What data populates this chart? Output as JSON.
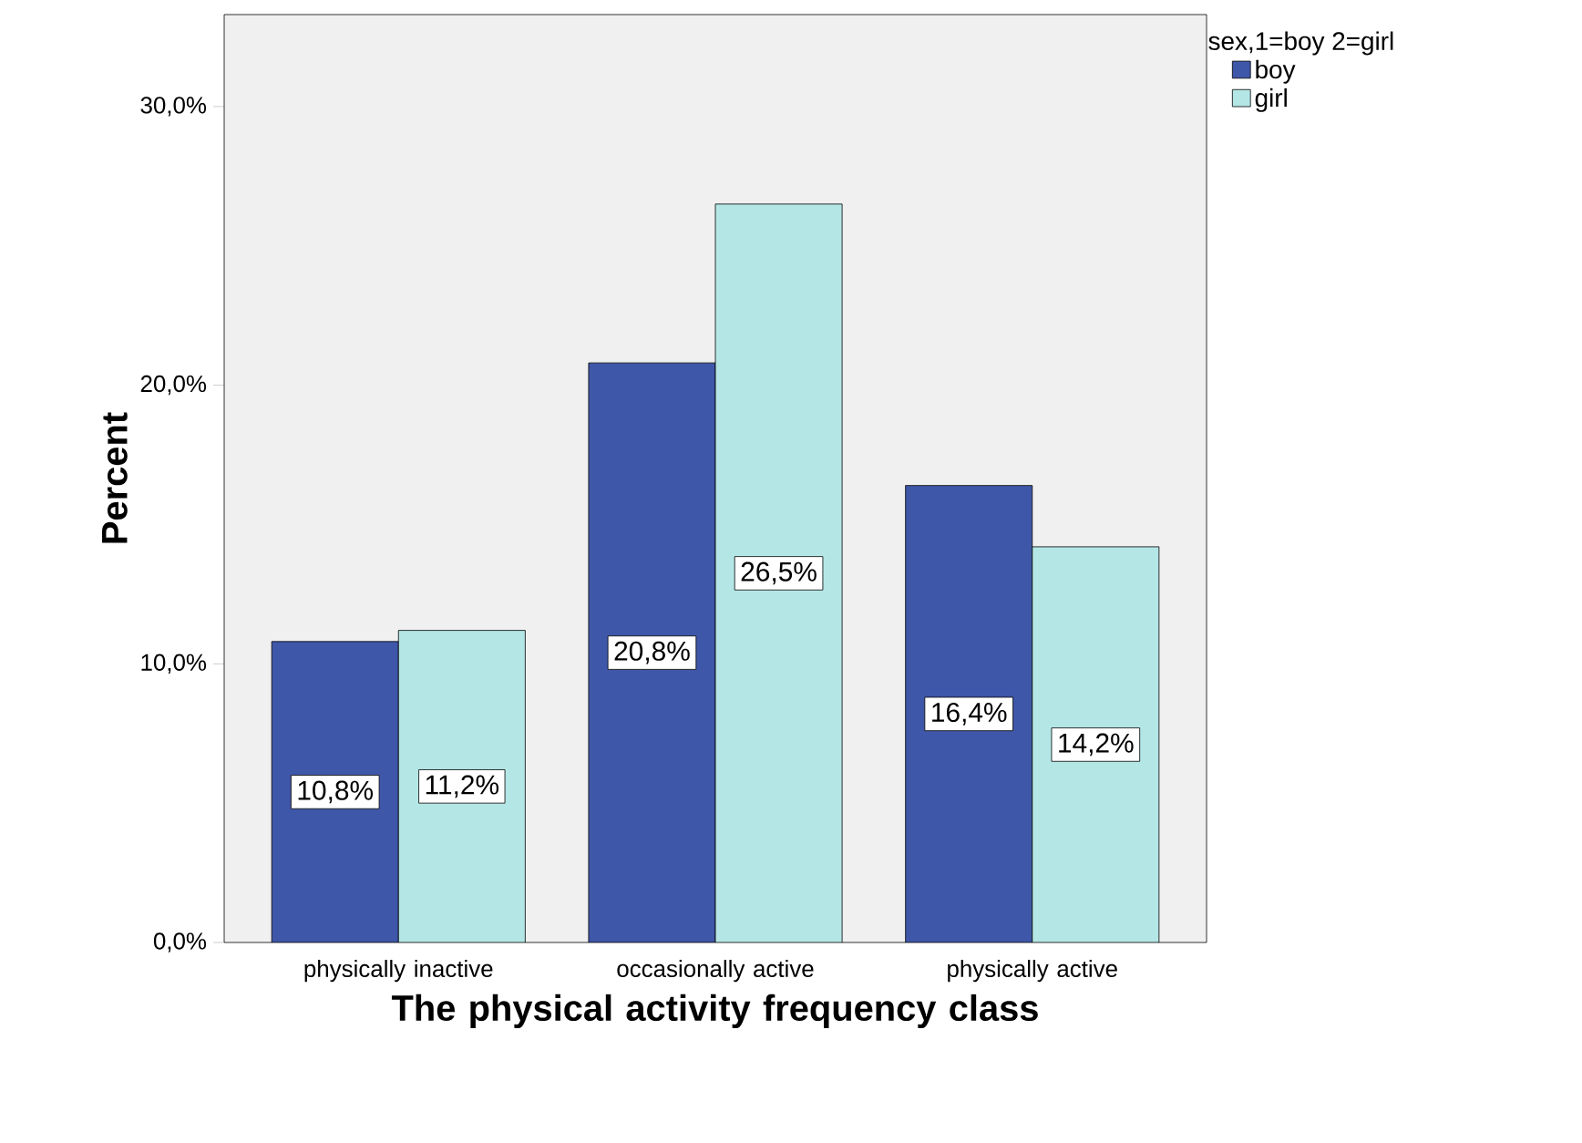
{
  "chart_data": {
    "type": "bar",
    "xlabel": "The physical activity frequency class",
    "ylabel": "Percent",
    "legend_title": "sex,1=boy 2=girl",
    "categories": [
      "physically inactive",
      "occasionally active",
      "physically active"
    ],
    "series": [
      {
        "name": "boy",
        "color": "#3f57a8",
        "values": [
          10.8,
          20.8,
          16.4
        ],
        "value_labels": [
          "10,8%",
          "20,8%",
          "16,4%"
        ]
      },
      {
        "name": "girl",
        "color": "#b4e6e6",
        "values": [
          11.2,
          26.5,
          14.2
        ],
        "value_labels": [
          "11,2%",
          "26,5%",
          "14,2%"
        ]
      }
    ],
    "ylim": [
      0,
      33.3
    ],
    "yticks": [
      {
        "value": 0,
        "label": "0,0%"
      },
      {
        "value": 10,
        "label": "10,0%"
      },
      {
        "value": 20,
        "label": "20,0%"
      },
      {
        "value": 30,
        "label": "30,0%"
      }
    ],
    "legend": "top right"
  }
}
